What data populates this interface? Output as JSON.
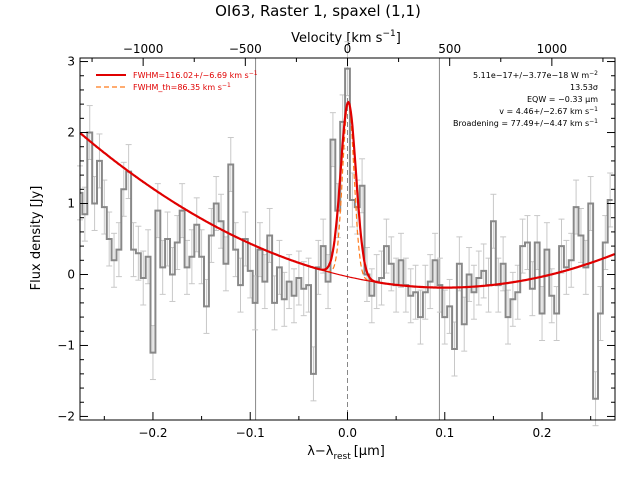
{
  "chart_data": {
    "type": "line",
    "title": "OI63, Raster 1, spaxel (1,1)",
    "xlabel": "λ−λ",
    "xlabel_sub": "rest",
    "xlabel_unit": "[μm]",
    "ylabel": "Flux density [Jy]",
    "top_axis_label": "Velocity [km s",
    "top_axis_sup": "−1",
    "top_axis_close": "]",
    "xlim": [
      -0.275,
      0.275
    ],
    "ylim": [
      -2.05,
      3.05
    ],
    "velocity_per_micron": 4760,
    "x_ticks": [
      -0.2,
      -0.1,
      0.0,
      0.1,
      0.2
    ],
    "x_tick_labels": [
      "−0.2",
      "−0.1",
      "0.0",
      "0.1",
      "0.2"
    ],
    "y_ticks": [
      -2,
      -1,
      0,
      1,
      2,
      3
    ],
    "y_tick_labels": [
      "−2",
      "−1",
      "0",
      "1",
      "2",
      "3"
    ],
    "velocity_ticks": [
      -1000,
      -500,
      0,
      500,
      1000
    ],
    "velocity_tick_labels": [
      "−1000",
      "−500",
      "0",
      "500",
      "1000"
    ],
    "vertical_lines": [
      -0.0945,
      0.0,
      0.0945
    ],
    "legend": [
      {
        "label": "FWHM=116.02+/−6.69 km s",
        "sup": "−1",
        "style": "solid"
      },
      {
        "label": "FWHM_th=86.35 km s",
        "sup": "−1",
        "style": "dashed"
      }
    ],
    "annotations": [
      {
        "text": "5.11e−17+/−3.77e−18 W m",
        "sup": "−2"
      },
      {
        "text": "13.53σ",
        "sup": ""
      },
      {
        "text": "EQW = −0.33 μm",
        "sup": ""
      },
      {
        "text": "v = 4.46+/−2.67 km s",
        "sup": "−1"
      },
      {
        "text": "Broadening = 77.49+/−4.47 km s",
        "sup": "−1"
      }
    ],
    "colors": {
      "spectrum": "#888888",
      "fit": "#e00000",
      "instrumental": "#ff7a1a"
    },
    "model": {
      "continuum_coeffs": [
        -0.03,
        -3.1,
        15.5
      ],
      "line_center": 0.00088,
      "line_amplitude": 2.46,
      "line_sigma": 0.0078,
      "instrumental_sigma": 0.0058,
      "fit_window": [
        -0.03,
        0.03
      ]
    },
    "series": [
      {
        "type": "step",
        "x": [
          -0.275,
          -0.27,
          -0.265,
          -0.26,
          -0.255,
          -0.25,
          -0.245,
          -0.24,
          -0.235,
          -0.23,
          -0.225,
          -0.22,
          -0.215,
          -0.21,
          -0.205,
          -0.2,
          -0.195,
          -0.19,
          -0.185,
          -0.18,
          -0.175,
          -0.17,
          -0.165,
          -0.16,
          -0.155,
          -0.15,
          -0.145,
          -0.14,
          -0.135,
          -0.13,
          -0.125,
          -0.12,
          -0.115,
          -0.11,
          -0.105,
          -0.1,
          -0.095,
          -0.09,
          -0.085,
          -0.08,
          -0.075,
          -0.07,
          -0.065,
          -0.06,
          -0.055,
          -0.05,
          -0.045,
          -0.04,
          -0.035,
          -0.03,
          -0.025,
          -0.02,
          -0.015,
          -0.01,
          -0.005,
          0.0,
          0.005,
          0.01,
          0.015,
          0.02,
          0.025,
          0.03,
          0.035,
          0.04,
          0.045,
          0.05,
          0.055,
          0.06,
          0.065,
          0.07,
          0.075,
          0.08,
          0.085,
          0.09,
          0.095,
          0.1,
          0.105,
          0.11,
          0.115,
          0.12,
          0.125,
          0.13,
          0.135,
          0.14,
          0.145,
          0.15,
          0.155,
          0.16,
          0.165,
          0.17,
          0.175,
          0.18,
          0.185,
          0.19,
          0.195,
          0.2,
          0.205,
          0.21,
          0.215,
          0.22,
          0.225,
          0.23,
          0.235,
          0.24,
          0.245,
          0.25,
          0.255,
          0.26,
          0.265,
          0.27
        ],
        "y": [
          1.15,
          0.85,
          2.0,
          1.0,
          1.6,
          0.95,
          0.5,
          0.2,
          0.35,
          1.2,
          1.45,
          0.35,
          0.3,
          -0.05,
          0.25,
          -1.1,
          0.9,
          0.1,
          0.5,
          0.0,
          0.45,
          0.9,
          0.1,
          0.25,
          0.7,
          0.25,
          -0.45,
          0.55,
          1.0,
          0.75,
          0.15,
          1.55,
          0.35,
          -0.15,
          0.5,
          0.05,
          -0.4,
          0.35,
          -0.1,
          0.55,
          -0.4,
          0.1,
          -0.35,
          -0.1,
          -0.3,
          -0.05,
          -0.2,
          -0.15,
          -1.4,
          0.1,
          0.4,
          -0.1,
          1.9,
          0.9,
          2.15,
          2.9,
          1.05,
          0.95,
          1.25,
          0.0,
          -0.3,
          -0.1,
          -0.05,
          0.4,
          0.15,
          -0.15,
          0.2,
          -0.15,
          -0.3,
          -0.25,
          -0.6,
          -0.25,
          -0.1,
          0.2,
          -0.15,
          -0.6,
          -0.45,
          -1.05,
          0.15,
          -0.7,
          0.0,
          -0.25,
          -0.05,
          0.05,
          -0.15,
          0.75,
          -0.15,
          0.15,
          -0.6,
          -0.35,
          -0.25,
          0.4,
          0.45,
          -0.2,
          0.45,
          -0.55,
          0.35,
          -0.3,
          -0.55,
          0.4,
          0.1,
          0.2,
          0.95,
          0.55,
          0.1,
          1.0,
          -1.75,
          -0.55,
          0.45,
          1.05
        ],
        "err": 0.38
      }
    ]
  }
}
